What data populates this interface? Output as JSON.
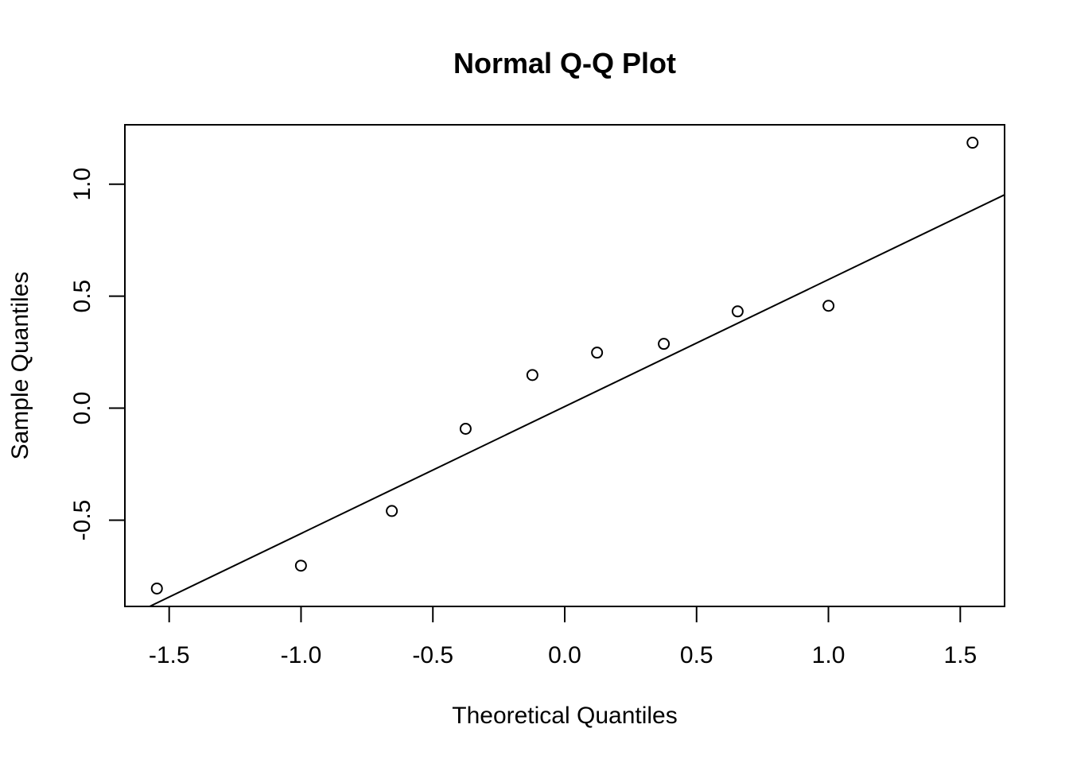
{
  "chart_data": {
    "type": "scatter",
    "title": "Normal Q-Q Plot",
    "xlabel": "Theoretical Quantiles",
    "ylabel": "Sample Quantiles",
    "xlim": [
      -1.668,
      1.668
    ],
    "ylim": [
      -0.885,
      1.265
    ],
    "x_ticks": [
      -1.5,
      -1.0,
      -0.5,
      0.0,
      0.5,
      1.0,
      1.5
    ],
    "x_tick_labels": [
      "-1.5",
      "-1.0",
      "-0.5",
      "0.0",
      "0.5",
      "1.0",
      "1.5"
    ],
    "y_ticks": [
      -0.5,
      0.0,
      0.5,
      1.0
    ],
    "y_tick_labels": [
      "-0.5",
      "0.0",
      "0.5",
      "1.0"
    ],
    "grid": false,
    "points": [
      {
        "x": -1.5466,
        "y": -0.805
      },
      {
        "x": -1.0003,
        "y": -0.703
      },
      {
        "x": -0.6557,
        "y": -0.459
      },
      {
        "x": -0.3758,
        "y": -0.092
      },
      {
        "x": -0.1226,
        "y": 0.148
      },
      {
        "x": 0.1226,
        "y": 0.248
      },
      {
        "x": 0.3758,
        "y": 0.287
      },
      {
        "x": 0.6557,
        "y": 0.432
      },
      {
        "x": 1.0003,
        "y": 0.457
      },
      {
        "x": 1.5466,
        "y": 1.185
      }
    ],
    "reference_line": {
      "intercept": 0.0072,
      "slope": 0.5668
    }
  }
}
